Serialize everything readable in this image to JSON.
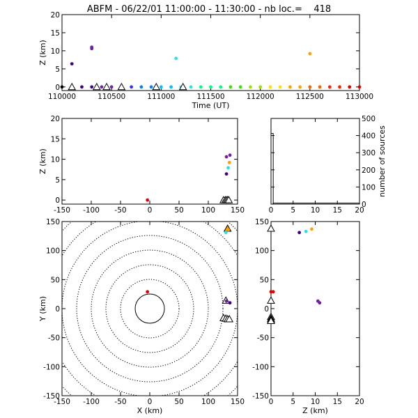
{
  "title": "ABFM - 06/22/01 11:00:00 - 11:30:00 - nb loc.=    418",
  "colors": {
    "axis": "#000000",
    "station": "#000000",
    "marker_palette": [
      "#000000",
      "#400080",
      "#7020a0",
      "#3030ff",
      "#0080ff",
      "#00c0ff",
      "#30e0e0",
      "#00ff80",
      "#40e000",
      "#a0e000",
      "#ffe000",
      "#ffa000",
      "#ff6000",
      "#ff2000",
      "#e00000"
    ]
  },
  "chart_data": [
    {
      "id": "time-height",
      "type": "scatter",
      "xlabel": "Time (UT)",
      "ylabel": "Z (km)",
      "xlim": [
        110000,
        113000
      ],
      "ylim": [
        -1,
        20
      ],
      "xticks": [
        "110000",
        "110500",
        "111000",
        "111500",
        "112000",
        "112500",
        "113000"
      ],
      "xtick_values": [
        110000,
        110500,
        111000,
        111500,
        112000,
        112500,
        113000
      ],
      "yticks": [
        "0",
        "5",
        "10",
        "15",
        "20"
      ],
      "ytick_values": [
        0,
        5,
        10,
        15,
        20
      ],
      "sources": [
        {
          "x": 110100,
          "y": 6.4,
          "color": "#400080"
        },
        {
          "x": 110300,
          "y": 10.6,
          "color": "#7020a0"
        },
        {
          "x": 110300,
          "y": 11.0,
          "color": "#7020a0"
        },
        {
          "x": 111150,
          "y": 7.9,
          "color": "#30e0e0"
        },
        {
          "x": 112500,
          "y": 9.2,
          "color": "#ffa000"
        }
      ],
      "stations": [
        110100,
        110350,
        110450,
        110600,
        110950,
        111220
      ],
      "clock_markers": [
        110000,
        110100,
        110200,
        110300,
        110400,
        110500,
        110600,
        110700,
        110800,
        110900,
        111000,
        111100,
        111200,
        111300,
        111400,
        111500,
        111600,
        111700,
        111800,
        111900,
        112000,
        112100,
        112200,
        112300,
        112400,
        112500,
        112600,
        112700,
        112800,
        112900,
        113000
      ]
    },
    {
      "id": "x-height",
      "type": "scatter",
      "xlabel": "",
      "ylabel": "Z (km)",
      "xlim": [
        -150,
        150
      ],
      "ylim": [
        -1,
        20
      ],
      "xticks": [
        "-150",
        "-100",
        "-50",
        "0",
        "50",
        "100",
        "150"
      ],
      "xtick_values": [
        -150,
        -100,
        -50,
        0,
        50,
        100,
        150
      ],
      "yticks": [
        "0",
        "5",
        "10",
        "15",
        "20"
      ],
      "ytick_values": [
        0,
        5,
        10,
        15,
        20
      ],
      "sources": [
        {
          "x": 131,
          "y": 6.4,
          "color": "#400080"
        },
        {
          "x": 131,
          "y": 10.6,
          "color": "#7020a0"
        },
        {
          "x": 137,
          "y": 11.0,
          "color": "#7020a0"
        },
        {
          "x": 134,
          "y": 7.9,
          "color": "#30e0e0"
        },
        {
          "x": 136,
          "y": 9.2,
          "color": "#ffa000"
        },
        {
          "x": -4,
          "y": 0.0,
          "color": "#e00000"
        }
      ],
      "stations": [
        126,
        129,
        131,
        133,
        135
      ]
    },
    {
      "id": "height-histogram",
      "type": "bar",
      "xlabel": "",
      "ylabel": "number of sources",
      "xlim": [
        0,
        20
      ],
      "ylim": [
        0,
        500
      ],
      "xticks": [
        "0",
        "5",
        "10",
        "15",
        "20"
      ],
      "xtick_values": [
        0,
        5,
        10,
        15,
        20
      ],
      "yticks": [
        "0",
        "100",
        "200",
        "300",
        "400",
        "500"
      ],
      "ytick_values": [
        0,
        100,
        200,
        300,
        400,
        500
      ],
      "bins": [
        {
          "x0": 0.0,
          "x1": 0.5,
          "count": 412
        },
        {
          "x0": 0.5,
          "x1": 20.0,
          "count": 6
        }
      ]
    },
    {
      "id": "plan-view",
      "type": "scatter",
      "xlabel": "X (km)",
      "ylabel": "Y (km)",
      "xlim": [
        -150,
        150
      ],
      "ylim": [
        -150,
        150
      ],
      "xticks": [
        "-150",
        "-100",
        "-50",
        "0",
        "50",
        "100",
        "150"
      ],
      "xtick_values": [
        -150,
        -100,
        -50,
        0,
        50,
        100,
        150
      ],
      "yticks": [
        "-150",
        "-100",
        "-50",
        "0",
        "50",
        "100",
        "150"
      ],
      "ytick_values": [
        -150,
        -100,
        -50,
        0,
        50,
        100,
        150
      ],
      "range_rings_km": [
        25,
        50,
        75,
        100,
        125,
        150,
        175,
        200
      ],
      "sources": [
        {
          "x": -4,
          "y": 29,
          "color": "#e00000"
        },
        {
          "x": 130,
          "y": 131,
          "color": "#30e0e0"
        },
        {
          "x": 134,
          "y": 136,
          "color": "#ffa000"
        },
        {
          "x": 131,
          "y": 13,
          "color": "#7020a0"
        },
        {
          "x": 137,
          "y": 10,
          "color": "#400080"
        }
      ],
      "stations": [
        {
          "x": 133,
          "y": 138,
          "fill": "#ffa000"
        },
        {
          "x": 130,
          "y": 14,
          "fill": "#ffffff"
        },
        {
          "x": 126,
          "y": -16,
          "fill": "#ffffff"
        },
        {
          "x": 130,
          "y": -17,
          "fill": "#ffffff"
        },
        {
          "x": 133,
          "y": -18,
          "fill": "#ffffff"
        },
        {
          "x": 136,
          "y": -18,
          "fill": "#ffffff"
        }
      ]
    },
    {
      "id": "height-y",
      "type": "scatter",
      "xlabel": "Z (km)",
      "ylabel": "",
      "xlim": [
        0,
        20
      ],
      "ylim": [
        -150,
        150
      ],
      "xticks": [
        "0",
        "5",
        "10",
        "15",
        "20"
      ],
      "xtick_values": [
        0,
        5,
        10,
        15,
        20
      ],
      "yticks": [
        "-150",
        "-100",
        "-50",
        "0",
        "50",
        "100",
        "150"
      ],
      "ytick_values": [
        -150,
        -100,
        -50,
        0,
        50,
        100,
        150
      ],
      "sources": [
        {
          "x": 0.0,
          "y": 29,
          "color": "#e00000"
        },
        {
          "x": 0.5,
          "y": 29,
          "color": "#e00000"
        },
        {
          "x": 6.4,
          "y": 131,
          "color": "#400080"
        },
        {
          "x": 7.9,
          "y": 133,
          "color": "#30e0e0"
        },
        {
          "x": 9.2,
          "y": 137,
          "color": "#ffa000"
        },
        {
          "x": 10.6,
          "y": 13,
          "color": "#7020a0"
        },
        {
          "x": 11.0,
          "y": 10,
          "color": "#7020a0"
        }
      ],
      "stations": [
        {
          "x": 0.0,
          "y": 138
        },
        {
          "x": 0.0,
          "y": 14
        },
        {
          "x": 0.0,
          "y": -14
        },
        {
          "x": 0.0,
          "y": -17
        },
        {
          "x": 0.0,
          "y": -19
        },
        {
          "x": 0.0,
          "y": -21
        }
      ]
    }
  ]
}
